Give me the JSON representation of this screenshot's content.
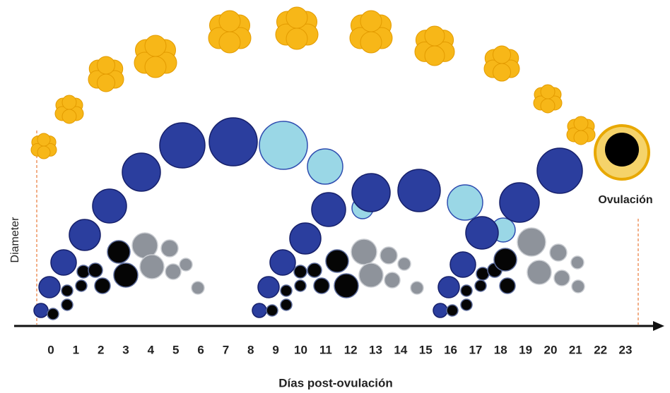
{
  "axis": {
    "y_label": "Diameter",
    "x_label": "Días post-ovulación",
    "x_ticks": [
      "0",
      "1",
      "2",
      "3",
      "4",
      "5",
      "6",
      "7",
      "8",
      "9",
      "10",
      "11",
      "12",
      "13",
      "14",
      "15",
      "16",
      "17",
      "18",
      "19",
      "20",
      "21",
      "22",
      "23"
    ]
  },
  "annotation": "Ovulación"
}
